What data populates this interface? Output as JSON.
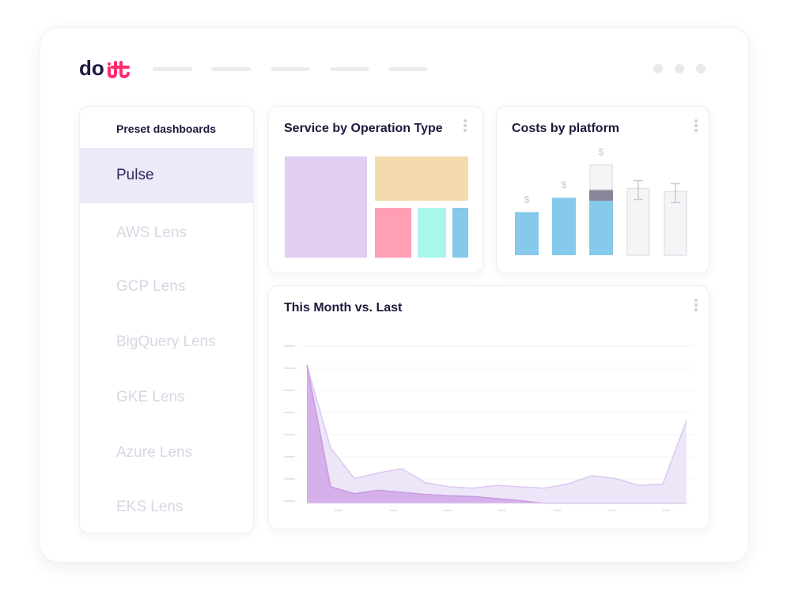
{
  "brand": {
    "logo_text": "doit",
    "colors": {
      "primary": "#1c1a3d",
      "accent": "#ff2d6f"
    }
  },
  "window_controls": [
    "dot",
    "dot",
    "dot"
  ],
  "sidebar": {
    "heading": "Preset dashboards",
    "items": [
      {
        "label": "Pulse",
        "active": true
      },
      {
        "label": "AWS Lens",
        "active": false
      },
      {
        "label": "GCP Lens",
        "active": false
      },
      {
        "label": "BigQuery Lens",
        "active": false
      },
      {
        "label": "GKE Lens",
        "active": false
      },
      {
        "label": "Azure Lens",
        "active": false
      },
      {
        "label": "EKS Lens",
        "active": false
      }
    ]
  },
  "cards": {
    "service": {
      "title": "Service by Operation Type",
      "menu_icon": "more-vertical-icon"
    },
    "platform": {
      "title": "Costs by platform",
      "menu_icon": "more-vertical-icon",
      "bar_label": "$"
    },
    "month": {
      "title": "This Month vs. Last",
      "menu_icon": "more-vertical-icon"
    }
  },
  "colors": {
    "treemap": [
      "#e3cdf3",
      "#f4dbae",
      "#ff9fb6",
      "#a9f7ea",
      "#86c9ea"
    ],
    "bar_blue": "#86c9ea",
    "bar_dark": "#8a8699",
    "bar_empty": "#f5f5f7",
    "area_this": "#d5b0ea",
    "area_last": "#ede6f8",
    "line_this": "#c89be0",
    "line_last": "#dcc8f1"
  },
  "chart_data": [
    {
      "type": "bar",
      "title": "Costs by platform",
      "categories": [
        "",
        "",
        "",
        "",
        ""
      ],
      "series": [
        {
          "values": [
            0.42,
            0.56,
            0.53,
            0,
            0
          ]
        },
        {
          "values": [
            0,
            0,
            0.11,
            0,
            0
          ]
        },
        {
          "values": [
            0,
            0,
            0.24,
            0.65,
            0.62
          ]
        }
      ],
      "ylim": [
        0,
        1
      ],
      "value_labels": [
        "$",
        "$",
        "$",
        "",
        ""
      ]
    },
    {
      "type": "area",
      "title": "This Month vs. Last",
      "x": [
        0,
        1,
        2,
        3,
        4,
        5,
        6,
        7,
        8,
        9,
        10,
        11,
        12,
        13,
        14,
        15,
        16
      ],
      "series": [
        {
          "values": [
            100,
            12,
            7,
            9.5,
            8,
            6.5,
            5.5,
            5,
            3.5,
            2,
            0,
            0,
            0,
            0,
            0,
            0,
            0
          ]
        },
        {
          "values": [
            100,
            40,
            18,
            22,
            25,
            15,
            12,
            11,
            13,
            12,
            11,
            14,
            20,
            18,
            13,
            14,
            60
          ]
        }
      ],
      "ylim": [
        0,
        100
      ],
      "grid": true
    }
  ]
}
